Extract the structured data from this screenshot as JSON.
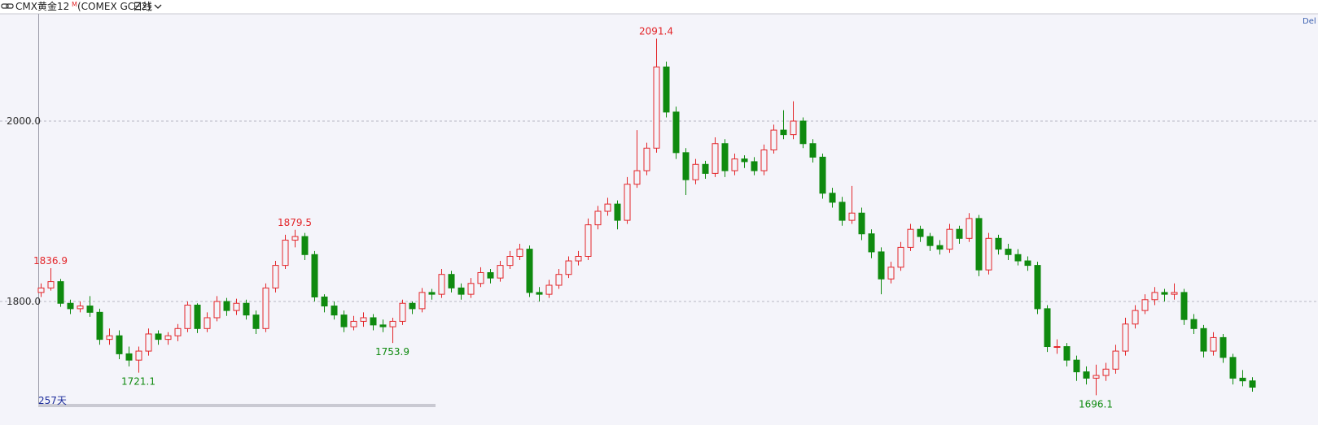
{
  "header": {
    "symbol": "CMX黄金12",
    "badge": "M",
    "contract": "(COMEX GCZ2)",
    "period": "日线",
    "right_label": "Del"
  },
  "chart_data": {
    "type": "candlestick",
    "bar_count_label": "257天",
    "up_color": "#e3262a",
    "down_color": "#0f8a0f",
    "grid": true,
    "ylim": [
      1683.8,
      2118.0
    ],
    "yticks": [
      {
        "value": 1800,
        "label": "1800.0"
      },
      {
        "value": 2000,
        "label": "2000.0"
      }
    ],
    "open": [
      1810,
      1815,
      1822,
      1798,
      1792,
      1795,
      1788,
      1758,
      1762,
      1742,
      1735,
      1745,
      1764,
      1758,
      1762,
      1770,
      1796,
      1770,
      1782,
      1800,
      1790,
      1798,
      1785,
      1770,
      1815,
      1840,
      1868,
      1872,
      1852,
      1805,
      1795,
      1785,
      1772,
      1778,
      1782,
      1774,
      1772,
      1778,
      1798,
      1792,
      1810,
      1808,
      1830,
      1815,
      1808,
      1820,
      1832,
      1826,
      1840,
      1850,
      1858,
      1810,
      1808,
      1818,
      1830,
      1845,
      1850,
      1885,
      1900,
      1908,
      1890,
      1930,
      1945,
      1970,
      2060,
      2010,
      1965,
      1935,
      1952,
      1942,
      1975,
      1945,
      1958,
      1955,
      1945,
      1968,
      1990,
      1985,
      2000,
      1975,
      1960,
      1920,
      1910,
      1890,
      1898,
      1875,
      1855,
      1825,
      1838,
      1860,
      1880,
      1872,
      1862,
      1858,
      1880,
      1870,
      1892,
      1835,
      1870,
      1858,
      1852,
      1845,
      1840,
      1792,
      1750,
      1750,
      1735,
      1722,
      1715,
      1718,
      1725,
      1745,
      1775,
      1790,
      1802,
      1810,
      1808,
      1810,
      1780,
      1770,
      1745,
      1760,
      1738,
      1715,
      1712
    ],
    "high": [
      1820,
      1836.9,
      1825,
      1802,
      1800,
      1806,
      1792,
      1770,
      1768,
      1750,
      1750,
      1770,
      1768,
      1766,
      1775,
      1800,
      1798,
      1788,
      1806,
      1804,
      1803,
      1802,
      1790,
      1820,
      1845,
      1874,
      1879.5,
      1876,
      1856,
      1808,
      1800,
      1790,
      1784,
      1788,
      1786,
      1780,
      1782,
      1802,
      1800,
      1815,
      1814,
      1836,
      1834,
      1820,
      1826,
      1838,
      1836,
      1845,
      1856,
      1864,
      1862,
      1816,
      1824,
      1836,
      1850,
      1856,
      1892,
      1906,
      1915,
      1912,
      1938,
      1990,
      1976,
      2091.4,
      2066,
      2016,
      1970,
      1958,
      1956,
      1982,
      1980,
      1964,
      1962,
      1960,
      1974,
      1996,
      2012,
      2022,
      2004,
      1980,
      1964,
      1926,
      1916,
      1928,
      1904,
      1880,
      1860,
      1844,
      1866,
      1886,
      1884,
      1876,
      1868,
      1886,
      1884,
      1898,
      1896,
      1876,
      1874,
      1864,
      1858,
      1850,
      1844,
      1796,
      1758,
      1754,
      1740,
      1728,
      1730,
      1732,
      1752,
      1782,
      1796,
      1808,
      1816,
      1814,
      1820,
      1814,
      1786,
      1774,
      1766,
      1764,
      1742,
      1724,
      1716
    ],
    "low": [
      1805,
      1812,
      1794,
      1786,
      1788,
      1783,
      1752,
      1752,
      1736,
      1728,
      1721.1,
      1740,
      1752,
      1752,
      1756,
      1766,
      1765,
      1766,
      1778,
      1784,
      1785,
      1780,
      1764,
      1766,
      1810,
      1836,
      1860,
      1846,
      1800,
      1788,
      1780,
      1766,
      1768,
      1772,
      1768,
      1766,
      1753.9,
      1774,
      1786,
      1788,
      1802,
      1804,
      1810,
      1802,
      1804,
      1816,
      1820,
      1822,
      1836,
      1846,
      1805,
      1800,
      1804,
      1814,
      1826,
      1840,
      1846,
      1880,
      1895,
      1880,
      1886,
      1926,
      1940,
      1965,
      2004,
      1958,
      1918,
      1930,
      1936,
      1938,
      1938,
      1940,
      1948,
      1940,
      1940,
      1964,
      1980,
      1980,
      1970,
      1954,
      1914,
      1904,
      1884,
      1886,
      1868,
      1848,
      1808,
      1820,
      1834,
      1856,
      1866,
      1856,
      1852,
      1854,
      1864,
      1866,
      1828,
      1830,
      1852,
      1846,
      1840,
      1834,
      1786,
      1744,
      1742,
      1728,
      1712,
      1708,
      1696.1,
      1712,
      1720,
      1740,
      1770,
      1786,
      1796,
      1800,
      1802,
      1774,
      1764,
      1738,
      1740,
      1732,
      1708,
      1706,
      1700
    ],
    "close": [
      1815,
      1822,
      1798,
      1792,
      1795,
      1788,
      1758,
      1762,
      1742,
      1735,
      1745,
      1764,
      1758,
      1762,
      1770,
      1796,
      1770,
      1782,
      1800,
      1790,
      1798,
      1785,
      1770,
      1815,
      1840,
      1868,
      1872,
      1852,
      1805,
      1795,
      1785,
      1772,
      1778,
      1782,
      1774,
      1772,
      1778,
      1798,
      1792,
      1810,
      1808,
      1830,
      1815,
      1808,
      1820,
      1832,
      1826,
      1840,
      1850,
      1858,
      1810,
      1808,
      1818,
      1830,
      1845,
      1850,
      1885,
      1900,
      1908,
      1890,
      1930,
      1945,
      1970,
      2060,
      2010,
      1965,
      1935,
      1952,
      1942,
      1975,
      1945,
      1958,
      1955,
      1945,
      1968,
      1990,
      1985,
      2000,
      1975,
      1960,
      1920,
      1910,
      1890,
      1898,
      1875,
      1855,
      1825,
      1838,
      1860,
      1880,
      1872,
      1862,
      1858,
      1880,
      1870,
      1892,
      1835,
      1870,
      1858,
      1852,
      1845,
      1840,
      1792,
      1750,
      1750,
      1735,
      1722,
      1715,
      1718,
      1725,
      1745,
      1775,
      1790,
      1802,
      1810,
      1808,
      1810,
      1780,
      1770,
      1745,
      1760,
      1738,
      1715,
      1712,
      1705
    ]
  }
}
